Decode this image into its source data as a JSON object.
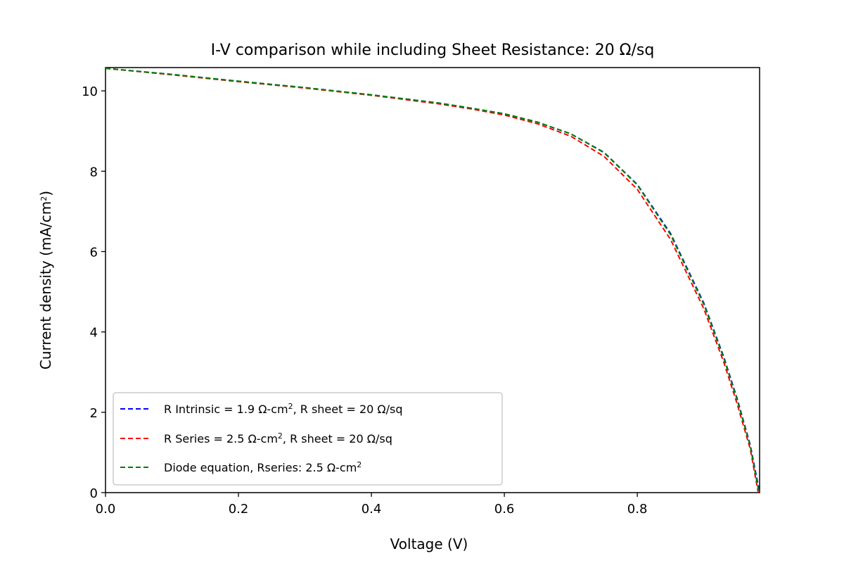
{
  "chart_data": {
    "type": "line",
    "title": "I-V comparison while including Sheet Resistance: 20 Ω/sq",
    "xlabel": "Voltage (V)",
    "ylabel": {
      "main": "Current density (mA/cm",
      "sup": "2",
      "tail": ")"
    },
    "xlim": [
      0.0,
      0.984
    ],
    "ylim": [
      0,
      10.58
    ],
    "xticks": [
      "0.0",
      "0.2",
      "0.4",
      "0.6",
      "0.8"
    ],
    "xtick_values": [
      0.0,
      0.2,
      0.4,
      0.6,
      0.8
    ],
    "yticks": [
      "0",
      "2",
      "4",
      "6",
      "8",
      "10"
    ],
    "ytick_values": [
      0,
      2,
      4,
      6,
      8,
      10
    ],
    "grid": false,
    "legend_position": "lower-left",
    "series": [
      {
        "name": {
          "main": "R Intrinsic = 1.9 Ω-cm",
          "sup": "2",
          "tail": ", R sheet = 20 Ω/sq"
        },
        "color": "#0000ff",
        "style": "dashed",
        "x": [
          0.0,
          0.1,
          0.2,
          0.3,
          0.4,
          0.5,
          0.55,
          0.6,
          0.65,
          0.7,
          0.75,
          0.8,
          0.85,
          0.9,
          0.93,
          0.95,
          0.97,
          0.984
        ],
        "y": [
          10.56,
          10.41,
          10.24,
          10.08,
          9.9,
          9.7,
          9.57,
          9.43,
          9.22,
          8.93,
          8.47,
          7.67,
          6.45,
          4.72,
          3.38,
          2.35,
          1.18,
          0.0
        ]
      },
      {
        "name": {
          "main": "R Series = 2.5 Ω-cm",
          "sup": "2",
          "tail": ", R sheet = 20 Ω/sq"
        },
        "color": "#ff0000",
        "style": "dashed",
        "x": [
          0.0,
          0.1,
          0.2,
          0.3,
          0.4,
          0.5,
          0.55,
          0.6,
          0.65,
          0.7,
          0.75,
          0.8,
          0.85,
          0.9,
          0.93,
          0.95,
          0.97,
          0.982
        ],
        "y": [
          10.56,
          10.4,
          10.23,
          10.07,
          9.89,
          9.68,
          9.55,
          9.4,
          9.18,
          8.87,
          8.37,
          7.55,
          6.3,
          4.58,
          3.25,
          2.22,
          1.08,
          0.0
        ]
      },
      {
        "name": {
          "main": "Diode equation, Rseries: 2.5 Ω-cm",
          "sup": "2",
          "tail": ""
        },
        "color": "#008000",
        "style": "dashed",
        "x": [
          0.0,
          0.1,
          0.2,
          0.3,
          0.4,
          0.5,
          0.55,
          0.6,
          0.65,
          0.7,
          0.75,
          0.8,
          0.85,
          0.9,
          0.93,
          0.95,
          0.97,
          0.983
        ],
        "y": [
          10.56,
          10.41,
          10.24,
          10.08,
          9.9,
          9.7,
          9.57,
          9.43,
          9.22,
          8.93,
          8.46,
          7.66,
          6.42,
          4.69,
          3.35,
          2.32,
          1.15,
          0.0
        ]
      }
    ]
  }
}
